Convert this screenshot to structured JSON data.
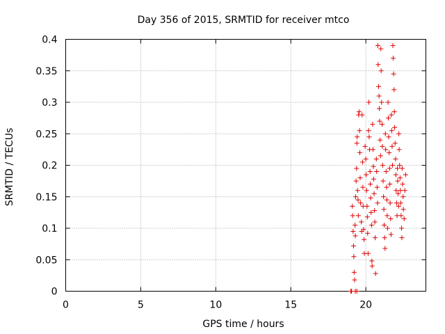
{
  "chart_data": {
    "type": "scatter",
    "title": "Day 356 of 2015, SRMTID for receiver mtco",
    "xlabel": "GPS time / hours",
    "ylabel": "SRMTID / TECUs",
    "xlim": [
      0,
      24
    ],
    "ylim": [
      0,
      0.4
    ],
    "xticks": [
      0,
      5,
      10,
      15,
      20
    ],
    "xtick_labels": [
      "0",
      "5",
      "10",
      "15",
      "20"
    ],
    "yticks": [
      0,
      0.05,
      0.1,
      0.15,
      0.2,
      0.25,
      0.3,
      0.35,
      0.4
    ],
    "ytick_labels": [
      "0",
      "0.05",
      "0.1",
      "0.15",
      "0.2",
      "0.25",
      "0.3",
      "0.35",
      "0.4"
    ],
    "grid": true,
    "marker": "+",
    "color": "#e00000",
    "series": [
      {
        "name": "SRMTID mtco",
        "points": [
          [
            19.0,
            0.0
          ],
          [
            19.05,
            0.0
          ],
          [
            19.3,
            0.0
          ],
          [
            19.4,
            0.0
          ],
          [
            19.1,
            0.135
          ],
          [
            19.12,
            0.12
          ],
          [
            19.15,
            0.095
          ],
          [
            19.18,
            0.072
          ],
          [
            19.2,
            0.055
          ],
          [
            19.22,
            0.03
          ],
          [
            19.25,
            0.018
          ],
          [
            19.28,
            0.105
          ],
          [
            19.3,
            0.088
          ],
          [
            19.32,
            0.15
          ],
          [
            19.35,
            0.175
          ],
          [
            19.38,
            0.195
          ],
          [
            19.4,
            0.235
          ],
          [
            19.42,
            0.245
          ],
          [
            19.45,
            0.16
          ],
          [
            19.48,
            0.145
          ],
          [
            19.5,
            0.12
          ],
          [
            19.52,
            0.28
          ],
          [
            19.55,
            0.285
          ],
          [
            19.58,
            0.255
          ],
          [
            19.6,
            0.22
          ],
          [
            19.62,
            0.18
          ],
          [
            19.65,
            0.14
          ],
          [
            19.7,
            0.11
          ],
          [
            19.72,
            0.095
          ],
          [
            19.75,
            0.28
          ],
          [
            19.78,
            0.205
          ],
          [
            19.8,
            0.165
          ],
          [
            19.82,
            0.135
          ],
          [
            19.85,
            0.098
          ],
          [
            19.88,
            0.082
          ],
          [
            19.9,
            0.06
          ],
          [
            19.95,
            0.23
          ],
          [
            20.0,
            0.21
          ],
          [
            20.02,
            0.185
          ],
          [
            20.05,
            0.16
          ],
          [
            20.08,
            0.135
          ],
          [
            20.1,
            0.118
          ],
          [
            20.12,
            0.092
          ],
          [
            20.15,
            0.06
          ],
          [
            20.18,
            0.255
          ],
          [
            20.2,
            0.3
          ],
          [
            20.22,
            0.245
          ],
          [
            20.25,
            0.225
          ],
          [
            20.28,
            0.19
          ],
          [
            20.3,
            0.17
          ],
          [
            20.32,
            0.148
          ],
          [
            20.35,
            0.125
          ],
          [
            20.38,
            0.105
          ],
          [
            20.4,
            0.048
          ],
          [
            20.42,
            0.04
          ],
          [
            20.45,
            0.265
          ],
          [
            20.48,
            0.225
          ],
          [
            20.5,
            0.198
          ],
          [
            20.52,
            0.178
          ],
          [
            20.55,
            0.155
          ],
          [
            20.58,
            0.128
          ],
          [
            20.6,
            0.11
          ],
          [
            20.62,
            0.085
          ],
          [
            20.65,
            0.028
          ],
          [
            20.7,
            0.21
          ],
          [
            20.72,
            0.19
          ],
          [
            20.75,
            0.165
          ],
          [
            20.78,
            0.14
          ],
          [
            20.8,
            0.39
          ],
          [
            20.82,
            0.36
          ],
          [
            20.85,
            0.325
          ],
          [
            20.88,
            0.31
          ],
          [
            20.9,
            0.29
          ],
          [
            20.92,
            0.27
          ],
          [
            20.95,
            0.24
          ],
          [
            20.98,
            0.215
          ],
          [
            21.0,
            0.385
          ],
          [
            21.02,
            0.35
          ],
          [
            21.05,
            0.3
          ],
          [
            21.08,
            0.265
          ],
          [
            21.1,
            0.23
          ],
          [
            21.12,
            0.2
          ],
          [
            21.15,
            0.175
          ],
          [
            21.18,
            0.15
          ],
          [
            21.2,
            0.13
          ],
          [
            21.22,
            0.105
          ],
          [
            21.25,
            0.085
          ],
          [
            21.28,
            0.068
          ],
          [
            21.3,
            0.25
          ],
          [
            21.32,
            0.225
          ],
          [
            21.35,
            0.19
          ],
          [
            21.38,
            0.165
          ],
          [
            21.4,
            0.145
          ],
          [
            21.42,
            0.12
          ],
          [
            21.45,
            0.1
          ],
          [
            21.48,
            0.3
          ],
          [
            21.5,
            0.275
          ],
          [
            21.52,
            0.245
          ],
          [
            21.55,
            0.22
          ],
          [
            21.58,
            0.195
          ],
          [
            21.6,
            0.17
          ],
          [
            21.62,
            0.14
          ],
          [
            21.65,
            0.115
          ],
          [
            21.68,
            0.09
          ],
          [
            21.7,
            0.28
          ],
          [
            21.72,
            0.255
          ],
          [
            21.75,
            0.23
          ],
          [
            21.78,
            0.2
          ],
          [
            21.8,
            0.39
          ],
          [
            21.82,
            0.37
          ],
          [
            21.85,
            0.345
          ],
          [
            21.88,
            0.32
          ],
          [
            21.9,
            0.285
          ],
          [
            21.92,
            0.26
          ],
          [
            21.95,
            0.235
          ],
          [
            21.98,
            0.21
          ],
          [
            22.0,
            0.185
          ],
          [
            22.02,
            0.16
          ],
          [
            22.05,
            0.14
          ],
          [
            22.08,
            0.12
          ],
          [
            22.1,
            0.195
          ],
          [
            22.12,
            0.175
          ],
          [
            22.15,
            0.155
          ],
          [
            22.18,
            0.135
          ],
          [
            22.2,
            0.25
          ],
          [
            22.22,
            0.225
          ],
          [
            22.25,
            0.2
          ],
          [
            22.28,
            0.18
          ],
          [
            22.3,
            0.16
          ],
          [
            22.32,
            0.14
          ],
          [
            22.35,
            0.12
          ],
          [
            22.38,
            0.1
          ],
          [
            22.4,
            0.085
          ],
          [
            22.42,
            0.195
          ],
          [
            22.45,
            0.17
          ],
          [
            22.48,
            0.15
          ],
          [
            22.5,
            0.13
          ],
          [
            22.55,
            0.115
          ],
          [
            22.6,
            0.16
          ],
          [
            22.65,
            0.185
          ]
        ]
      }
    ]
  }
}
